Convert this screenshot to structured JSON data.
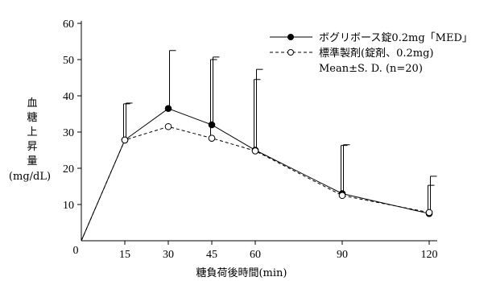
{
  "chart_data": {
    "type": "line",
    "xlabel": "糖負荷後時間(min)",
    "ylabel_chars": [
      "血",
      "糖",
      "上",
      "昇",
      "量"
    ],
    "ylabel_unit": "(mg/dL)",
    "xlim": [
      0,
      130
    ],
    "ylim": [
      0,
      60
    ],
    "x_ticks": [
      0,
      15,
      30,
      45,
      60,
      90,
      120
    ],
    "y_ticks": [
      10,
      20,
      30,
      40,
      50,
      60
    ],
    "y_zero_label": "0",
    "grid": false,
    "legend_position": "top-right",
    "legend_note": "Mean±S. D. (n=20)",
    "series": [
      {
        "name": "ボグリボース錠0.2mg「MED」",
        "style": "solid",
        "marker": "filled-circle",
        "x": [
          0,
          15,
          30,
          45,
          60,
          90,
          120
        ],
        "y": [
          0,
          27.8,
          36.5,
          32.0,
          25.0,
          13.0,
          7.5
        ],
        "sd": [
          0,
          10.2,
          16.0,
          18.7,
          22.3,
          13.5,
          10.3
        ]
      },
      {
        "name": "標準製剤(錠剤、0.2mg)",
        "style": "dashed",
        "marker": "open-circle",
        "x": [
          0,
          15,
          30,
          45,
          60,
          90,
          120
        ],
        "y": [
          0,
          27.8,
          31.5,
          28.3,
          24.8,
          12.5,
          7.8
        ],
        "sd": [
          0,
          10.0,
          0,
          21.7,
          19.7,
          13.8,
          7.5
        ]
      }
    ]
  }
}
